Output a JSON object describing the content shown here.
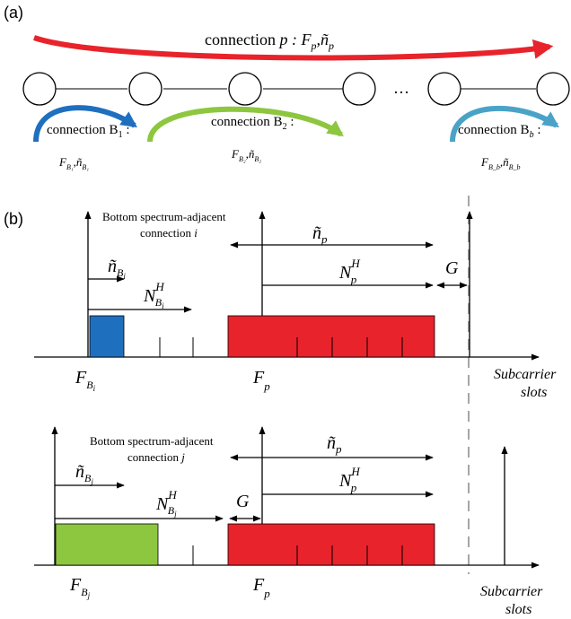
{
  "panel_a": {
    "label": "(a)",
    "main_connection": {
      "prefix": "connection ",
      "var": "p",
      "suffix": " : F",
      "sub": "p",
      "n_sep": ",ñ",
      "n_sub": "p"
    },
    "ellipsis": "…",
    "connections": [
      {
        "prefix": "connection B",
        "sub": "1",
        "colon": " :",
        "params": "F",
        "params_sub": "B₁",
        "n": ",ñ",
        "n_sub": "B₁",
        "color": "#1f6fbf"
      },
      {
        "prefix": "connection B",
        "sub": "2",
        "colon": " :",
        "params": "F",
        "params_sub": "B₂",
        "n": ",ñ",
        "n_sub": "B₂",
        "color": "#8dc63f"
      },
      {
        "prefix": "connection B",
        "sub": "b",
        "colon": " :",
        "params": "F",
        "params_sub": "B_b",
        "n": ",ñ",
        "n_sub": "B_b",
        "color": "#4aa3c7"
      }
    ],
    "main_color": "#e8232b"
  },
  "panel_b": {
    "label": "(b)",
    "top": {
      "caption_line1": "Bottom spectrum-adjacent",
      "caption_line2_prefix": "connection ",
      "caption_line2_var": "i",
      "n_tilde_p": "ñ",
      "n_tilde_p_sub": "p",
      "N_p": "N",
      "N_p_sup": "H",
      "N_p_sub": "p",
      "G": "G",
      "n_tilde_B": "ñ",
      "n_tilde_B_sub": "B",
      "n_tilde_B_subsub": "i",
      "N_B": "N",
      "N_B_sup": "H",
      "N_B_sub": "B",
      "N_B_subsub": "i",
      "F_B": "F",
      "F_B_sub": "B",
      "F_B_subsub": "i",
      "F_p": "F",
      "F_p_sub": "p",
      "axis_label_1": "Subcarrier",
      "axis_label_2": "slots",
      "block_B_color": "#1f6fbf",
      "block_p_color": "#e8232b"
    },
    "bottom": {
      "caption_line1": "Bottom spectrum-adjacent",
      "caption_line2_prefix": "connection ",
      "caption_line2_var": "j",
      "n_tilde_p": "ñ",
      "n_tilde_p_sub": "p",
      "N_p": "N",
      "N_p_sup": "H",
      "N_p_sub": "p",
      "G": "G",
      "n_tilde_B": "ñ",
      "n_tilde_B_sub": "B",
      "n_tilde_B_subsub": "j",
      "N_B": "N",
      "N_B_sup": "H",
      "N_B_sub": "B",
      "N_B_subsub": "j",
      "F_B": "F",
      "F_B_sub": "B",
      "F_B_subsub": "j",
      "F_p": "F",
      "F_p_sub": "p",
      "axis_label_1": "Subcarrier",
      "axis_label_2": "slots",
      "block_B_color": "#8dc63f",
      "block_p_color": "#e8232b"
    }
  }
}
